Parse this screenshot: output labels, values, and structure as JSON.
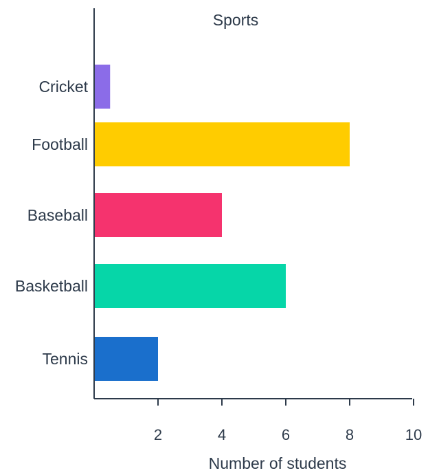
{
  "chart_data": {
    "type": "bar",
    "orientation": "horizontal",
    "title": "Sports",
    "xlabel": "Number of students",
    "ylabel": "",
    "categories": [
      "Cricket",
      "Football",
      "Baseball",
      "Basketball",
      "Tennis"
    ],
    "values": [
      0.5,
      8,
      4,
      6,
      2
    ],
    "colors": [
      "#8b6ce8",
      "#ffcc00",
      "#f5336e",
      "#06d6a8",
      "#1a6fcc"
    ],
    "xlim": [
      0,
      10
    ],
    "xticks": [
      2,
      4,
      6,
      8,
      10
    ],
    "grid": false,
    "legend": "none"
  }
}
